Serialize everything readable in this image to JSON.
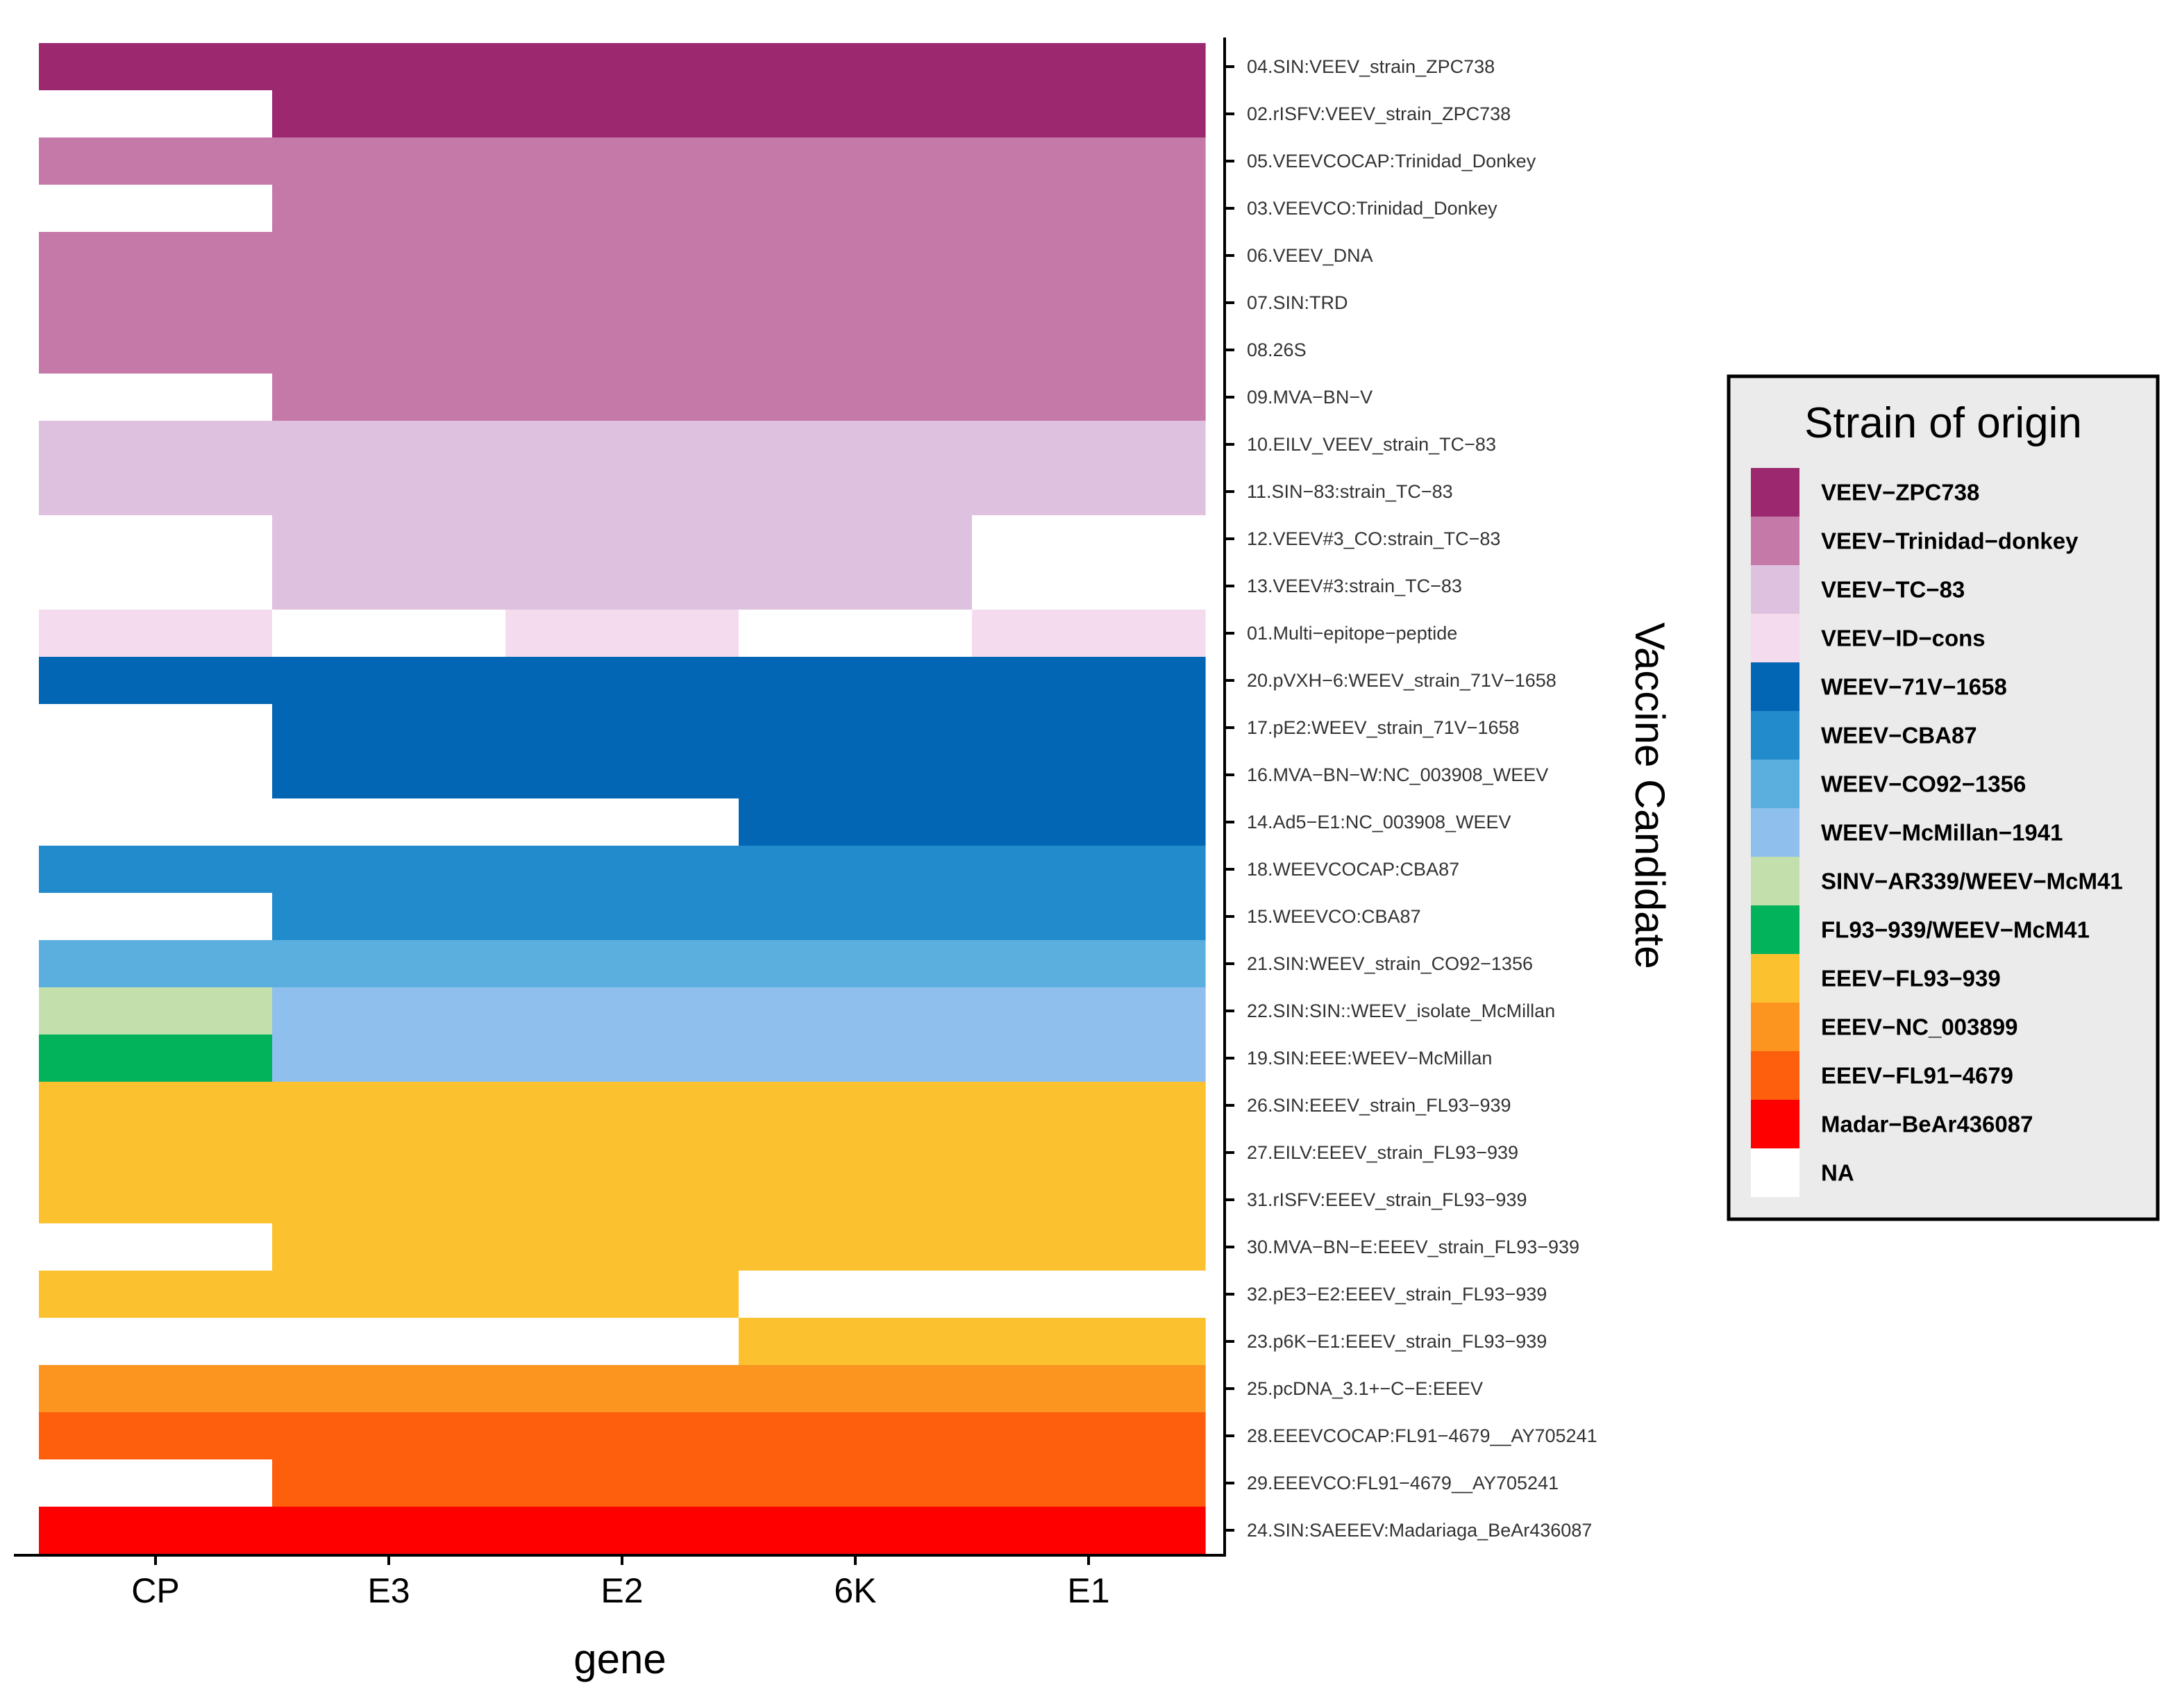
{
  "chart_data": {
    "type": "heatmap",
    "xlabel": "gene",
    "ylabel": "Vaccine Candidate",
    "genes": [
      "CP",
      "E3",
      "E2",
      "6K",
      "E1"
    ],
    "legend": {
      "title": "Strain of origin",
      "entries": [
        {
          "name": "VEEV−ZPC738",
          "color": "#9C2870"
        },
        {
          "name": "VEEV−Trinidad−donkey",
          "color": "#C479A8"
        },
        {
          "name": "VEEV−TC−83",
          "color": "#DEC1DE"
        },
        {
          "name": "VEEV−ID−cons",
          "color": "#F4DCEE"
        },
        {
          "name": "WEEV−71V−1658",
          "color": "#0366B5"
        },
        {
          "name": "WEEV−CBA87",
          "color": "#228BCB"
        },
        {
          "name": "WEEV−CO92−1356",
          "color": "#5BAFDF"
        },
        {
          "name": "WEEV−McMillan−1941",
          "color": "#8FBFED"
        },
        {
          "name": "SINV−AR339/WEEV−McM41",
          "color": "#C3E0AC"
        },
        {
          "name": "FL93−939/WEEV−McM41",
          "color": "#03B35B"
        },
        {
          "name": "EEEV−FL93−939",
          "color": "#FCC12F"
        },
        {
          "name": "EEEV−NC_003899",
          "color": "#FB9520"
        },
        {
          "name": "EEEV−FL91−4679",
          "color": "#FD5F0C"
        },
        {
          "name": "Madar−BeAr436087",
          "color": "#FE0000"
        },
        {
          "name": "NA",
          "color": "#FFFFFF"
        }
      ]
    },
    "candidates": [
      {
        "name": "04.SIN:VEEV_strain_ZPC738",
        "strains": [
          "VEEV−ZPC738",
          "VEEV−ZPC738",
          "VEEV−ZPC738",
          "VEEV−ZPC738",
          "VEEV−ZPC738"
        ]
      },
      {
        "name": "02.rISFV:VEEV_strain_ZPC738",
        "strains": [
          "NA",
          "VEEV−ZPC738",
          "VEEV−ZPC738",
          "VEEV−ZPC738",
          "VEEV−ZPC738"
        ]
      },
      {
        "name": "05.VEEVCOCAP:Trinidad_Donkey",
        "strains": [
          "VEEV−Trinidad−donkey",
          "VEEV−Trinidad−donkey",
          "VEEV−Trinidad−donkey",
          "VEEV−Trinidad−donkey",
          "VEEV−Trinidad−donkey"
        ]
      },
      {
        "name": "03.VEEVCO:Trinidad_Donkey",
        "strains": [
          "NA",
          "VEEV−Trinidad−donkey",
          "VEEV−Trinidad−donkey",
          "VEEV−Trinidad−donkey",
          "VEEV−Trinidad−donkey"
        ]
      },
      {
        "name": "06.VEEV_DNA",
        "strains": [
          "VEEV−Trinidad−donkey",
          "VEEV−Trinidad−donkey",
          "VEEV−Trinidad−donkey",
          "VEEV−Trinidad−donkey",
          "VEEV−Trinidad−donkey"
        ]
      },
      {
        "name": "07.SIN:TRD",
        "strains": [
          "VEEV−Trinidad−donkey",
          "VEEV−Trinidad−donkey",
          "VEEV−Trinidad−donkey",
          "VEEV−Trinidad−donkey",
          "VEEV−Trinidad−donkey"
        ]
      },
      {
        "name": "08.26S",
        "strains": [
          "VEEV−Trinidad−donkey",
          "VEEV−Trinidad−donkey",
          "VEEV−Trinidad−donkey",
          "VEEV−Trinidad−donkey",
          "VEEV−Trinidad−donkey"
        ]
      },
      {
        "name": "09.MVA−BN−V",
        "strains": [
          "NA",
          "VEEV−Trinidad−donkey",
          "VEEV−Trinidad−donkey",
          "VEEV−Trinidad−donkey",
          "VEEV−Trinidad−donkey"
        ]
      },
      {
        "name": "10.EILV_VEEV_strain_TC−83",
        "strains": [
          "VEEV−TC−83",
          "VEEV−TC−83",
          "VEEV−TC−83",
          "VEEV−TC−83",
          "VEEV−TC−83"
        ]
      },
      {
        "name": "11.SIN−83:strain_TC−83",
        "strains": [
          "VEEV−TC−83",
          "VEEV−TC−83",
          "VEEV−TC−83",
          "VEEV−TC−83",
          "VEEV−TC−83"
        ]
      },
      {
        "name": "12.VEEV#3_CO:strain_TC−83",
        "strains": [
          "NA",
          "VEEV−TC−83",
          "VEEV−TC−83",
          "VEEV−TC−83",
          "NA"
        ]
      },
      {
        "name": "13.VEEV#3:strain_TC−83",
        "strains": [
          "NA",
          "VEEV−TC−83",
          "VEEV−TC−83",
          "VEEV−TC−83",
          "NA"
        ]
      },
      {
        "name": "01.Multi−epitope−peptide",
        "strains": [
          "VEEV−ID−cons",
          "NA",
          "VEEV−ID−cons",
          "NA",
          "VEEV−ID−cons"
        ]
      },
      {
        "name": "20.pVXH−6:WEEV_strain_71V−1658",
        "strains": [
          "WEEV−71V−1658",
          "WEEV−71V−1658",
          "WEEV−71V−1658",
          "WEEV−71V−1658",
          "WEEV−71V−1658"
        ]
      },
      {
        "name": "17.pE2:WEEV_strain_71V−1658",
        "strains": [
          "NA",
          "WEEV−71V−1658",
          "WEEV−71V−1658",
          "WEEV−71V−1658",
          "WEEV−71V−1658"
        ]
      },
      {
        "name": "16.MVA−BN−W:NC_003908_WEEV",
        "strains": [
          "NA",
          "WEEV−71V−1658",
          "WEEV−71V−1658",
          "WEEV−71V−1658",
          "WEEV−71V−1658"
        ]
      },
      {
        "name": "14.Ad5−E1:NC_003908_WEEV",
        "strains": [
          "NA",
          "NA",
          "NA",
          "WEEV−71V−1658",
          "WEEV−71V−1658"
        ]
      },
      {
        "name": "18.WEEVCOCAP:CBA87",
        "strains": [
          "WEEV−CBA87",
          "WEEV−CBA87",
          "WEEV−CBA87",
          "WEEV−CBA87",
          "WEEV−CBA87"
        ]
      },
      {
        "name": "15.WEEVCO:CBA87",
        "strains": [
          "NA",
          "WEEV−CBA87",
          "WEEV−CBA87",
          "WEEV−CBA87",
          "WEEV−CBA87"
        ]
      },
      {
        "name": "21.SIN:WEEV_strain_CO92−1356",
        "strains": [
          "WEEV−CO92−1356",
          "WEEV−CO92−1356",
          "WEEV−CO92−1356",
          "WEEV−CO92−1356",
          "WEEV−CO92−1356"
        ]
      },
      {
        "name": "22.SIN:SIN::WEEV_isolate_McMillan",
        "strains": [
          "SINV−AR339/WEEV−McM41",
          "WEEV−McMillan−1941",
          "WEEV−McMillan−1941",
          "WEEV−McMillan−1941",
          "WEEV−McMillan−1941"
        ]
      },
      {
        "name": "19.SIN:EEE:WEEV−McMillan",
        "strains": [
          "FL93−939/WEEV−McM41",
          "WEEV−McMillan−1941",
          "WEEV−McMillan−1941",
          "WEEV−McMillan−1941",
          "WEEV−McMillan−1941"
        ]
      },
      {
        "name": "26.SIN:EEEV_strain_FL93−939",
        "strains": [
          "EEEV−FL93−939",
          "EEEV−FL93−939",
          "EEEV−FL93−939",
          "EEEV−FL93−939",
          "EEEV−FL93−939"
        ]
      },
      {
        "name": "27.EILV:EEEV_strain_FL93−939",
        "strains": [
          "EEEV−FL93−939",
          "EEEV−FL93−939",
          "EEEV−FL93−939",
          "EEEV−FL93−939",
          "EEEV−FL93−939"
        ]
      },
      {
        "name": "31.rISFV:EEEV_strain_FL93−939",
        "strains": [
          "EEEV−FL93−939",
          "EEEV−FL93−939",
          "EEEV−FL93−939",
          "EEEV−FL93−939",
          "EEEV−FL93−939"
        ]
      },
      {
        "name": "30.MVA−BN−E:EEEV_strain_FL93−939",
        "strains": [
          "NA",
          "EEEV−FL93−939",
          "EEEV−FL93−939",
          "EEEV−FL93−939",
          "EEEV−FL93−939"
        ]
      },
      {
        "name": "32.pE3−E2:EEEV_strain_FL93−939",
        "strains": [
          "EEEV−FL93−939",
          "EEEV−FL93−939",
          "EEEV−FL93−939",
          "NA",
          "NA"
        ]
      },
      {
        "name": "23.p6K−E1:EEEV_strain_FL93−939",
        "strains": [
          "NA",
          "NA",
          "NA",
          "EEEV−FL93−939",
          "EEEV−FL93−939"
        ]
      },
      {
        "name": "25.pcDNA_3.1+−C−E:EEEV",
        "strains": [
          "EEEV−NC_003899",
          "EEEV−NC_003899",
          "EEEV−NC_003899",
          "EEEV−NC_003899",
          "EEEV−NC_003899"
        ]
      },
      {
        "name": "28.EEEVCOCAP:FL91−4679__AY705241",
        "strains": [
          "EEEV−FL91−4679",
          "EEEV−FL91−4679",
          "EEEV−FL91−4679",
          "EEEV−FL91−4679",
          "EEEV−FL91−4679"
        ]
      },
      {
        "name": "29.EEEVCO:FL91−4679__AY705241",
        "strains": [
          "NA",
          "EEEV−FL91−4679",
          "EEEV−FL91−4679",
          "EEEV−FL91−4679",
          "EEEV−FL91−4679"
        ]
      },
      {
        "name": "24.SIN:SAEEEV:Madariaga_BeAr436087",
        "strains": [
          "Madar−BeAr436087",
          "Madar−BeAr436087",
          "Madar−BeAr436087",
          "Madar−BeAr436087",
          "Madar−BeAr436087"
        ]
      }
    ]
  }
}
